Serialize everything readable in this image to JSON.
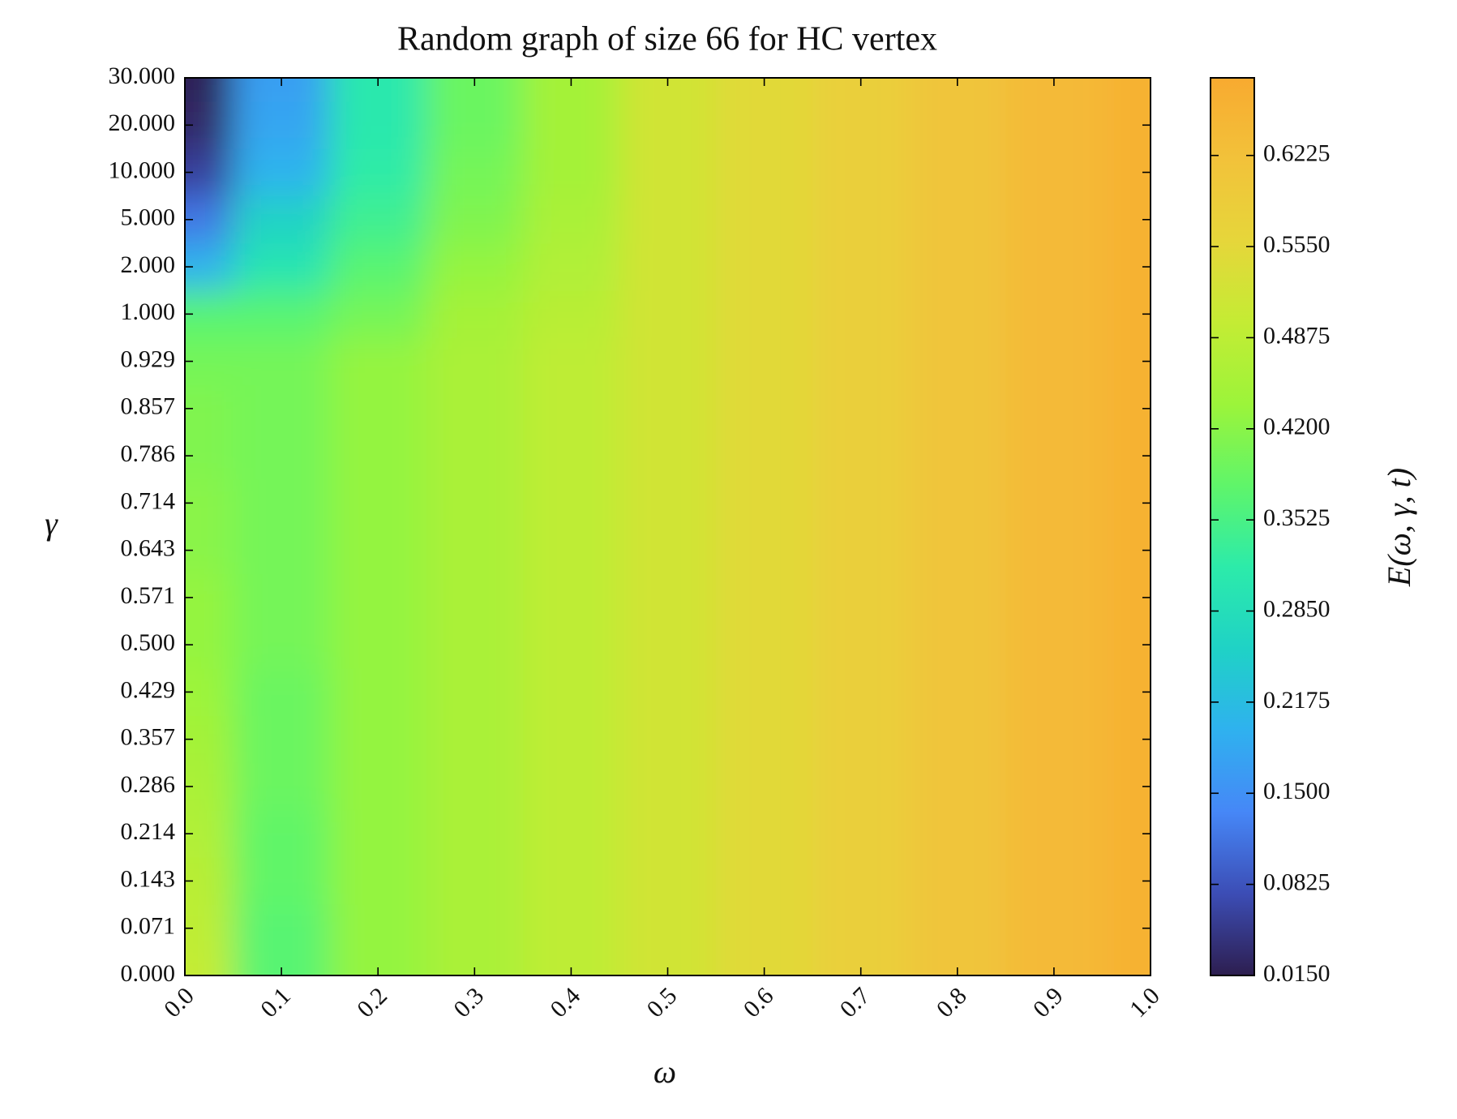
{
  "chart_data": {
    "type": "heatmap",
    "title": "Random graph of size 66 for HC vertex",
    "x_label": "ω",
    "y_label": "γ",
    "colorbar_label": "E(ω, γ, t)",
    "x": [
      0,
      0.1,
      0.2,
      0.3,
      0.4,
      0.5,
      0.6,
      0.7,
      0.8,
      0.9,
      1.0
    ],
    "xlim": [
      0,
      1
    ],
    "xticks": [
      {
        "value": 0,
        "label": "0.0"
      },
      {
        "value": 0.1,
        "label": "0.1"
      },
      {
        "value": 0.2,
        "label": "0.2"
      },
      {
        "value": 0.3,
        "label": "0.3"
      },
      {
        "value": 0.4,
        "label": "0.4"
      },
      {
        "value": 0.5,
        "label": "0.5"
      },
      {
        "value": 0.6,
        "label": "0.6"
      },
      {
        "value": 0.7,
        "label": "0.7"
      },
      {
        "value": 0.8,
        "label": "0.8"
      },
      {
        "value": 0.9,
        "label": "0.9"
      },
      {
        "value": 1,
        "label": "1.0"
      }
    ],
    "categories": [
      "0.000",
      "0.071",
      "0.143",
      "0.214",
      "0.286",
      "0.357",
      "0.429",
      "0.500",
      "0.571",
      "0.643",
      "0.714",
      "0.786",
      "0.857",
      "0.929",
      "1.000",
      "2.000",
      "5.000",
      "10.000",
      "20.000",
      "30.000"
    ],
    "values": [
      [
        0.5,
        0.37,
        0.43,
        0.46,
        0.49,
        0.52,
        0.55,
        0.58,
        0.61,
        0.64,
        0.66
      ],
      [
        0.49,
        0.37,
        0.43,
        0.46,
        0.49,
        0.52,
        0.55,
        0.58,
        0.61,
        0.64,
        0.66
      ],
      [
        0.48,
        0.38,
        0.43,
        0.46,
        0.49,
        0.52,
        0.55,
        0.58,
        0.61,
        0.64,
        0.66
      ],
      [
        0.47,
        0.38,
        0.43,
        0.46,
        0.49,
        0.52,
        0.55,
        0.58,
        0.61,
        0.64,
        0.66
      ],
      [
        0.46,
        0.39,
        0.43,
        0.46,
        0.49,
        0.52,
        0.55,
        0.58,
        0.61,
        0.64,
        0.66
      ],
      [
        0.45,
        0.39,
        0.43,
        0.46,
        0.49,
        0.52,
        0.55,
        0.58,
        0.61,
        0.64,
        0.66
      ],
      [
        0.44,
        0.39,
        0.43,
        0.46,
        0.49,
        0.52,
        0.55,
        0.58,
        0.61,
        0.64,
        0.66
      ],
      [
        0.43,
        0.4,
        0.43,
        0.46,
        0.49,
        0.52,
        0.55,
        0.58,
        0.61,
        0.64,
        0.66
      ],
      [
        0.43,
        0.4,
        0.43,
        0.46,
        0.49,
        0.52,
        0.55,
        0.58,
        0.61,
        0.64,
        0.66
      ],
      [
        0.42,
        0.4,
        0.43,
        0.46,
        0.49,
        0.52,
        0.55,
        0.58,
        0.61,
        0.64,
        0.66
      ],
      [
        0.42,
        0.4,
        0.43,
        0.46,
        0.49,
        0.52,
        0.55,
        0.58,
        0.61,
        0.64,
        0.66
      ],
      [
        0.41,
        0.4,
        0.43,
        0.46,
        0.49,
        0.52,
        0.55,
        0.58,
        0.61,
        0.64,
        0.66
      ],
      [
        0.41,
        0.4,
        0.43,
        0.46,
        0.49,
        0.52,
        0.55,
        0.58,
        0.61,
        0.64,
        0.66
      ],
      [
        0.4,
        0.4,
        0.43,
        0.46,
        0.49,
        0.52,
        0.55,
        0.58,
        0.61,
        0.64,
        0.66
      ],
      [
        0.37,
        0.37,
        0.4,
        0.45,
        0.48,
        0.52,
        0.55,
        0.58,
        0.61,
        0.64,
        0.66
      ],
      [
        0.2,
        0.3,
        0.37,
        0.43,
        0.47,
        0.52,
        0.55,
        0.58,
        0.61,
        0.64,
        0.66
      ],
      [
        0.12,
        0.26,
        0.34,
        0.41,
        0.46,
        0.52,
        0.55,
        0.58,
        0.61,
        0.64,
        0.66
      ],
      [
        0.06,
        0.2,
        0.32,
        0.4,
        0.45,
        0.52,
        0.55,
        0.58,
        0.61,
        0.64,
        0.66
      ],
      [
        0.03,
        0.18,
        0.31,
        0.39,
        0.45,
        0.52,
        0.55,
        0.58,
        0.61,
        0.64,
        0.66
      ],
      [
        0.02,
        0.17,
        0.31,
        0.39,
        0.45,
        0.52,
        0.55,
        0.58,
        0.61,
        0.64,
        0.66
      ]
    ],
    "clim": [
      0.015,
      0.68
    ],
    "cticks": [
      {
        "value": 0.015,
        "label": "0.0150"
      },
      {
        "value": 0.0825,
        "label": "0.0825"
      },
      {
        "value": 0.15,
        "label": "0.1500"
      },
      {
        "value": 0.2175,
        "label": "0.2175"
      },
      {
        "value": 0.285,
        "label": "0.2850"
      },
      {
        "value": 0.3525,
        "label": "0.3525"
      },
      {
        "value": 0.42,
        "label": "0.4200"
      },
      {
        "value": 0.4875,
        "label": "0.4875"
      },
      {
        "value": 0.555,
        "label": "0.5550"
      },
      {
        "value": 0.6225,
        "label": "0.6225"
      }
    ],
    "colormap": [
      "#2d1e4f",
      "#3c4db5",
      "#4687f7",
      "#2fb1ef",
      "#1fd2c6",
      "#2cebaa",
      "#5ff56a",
      "#9cf43a",
      "#c4ec34",
      "#e6d63a",
      "#f2c23a",
      "#f8aa30"
    ]
  }
}
